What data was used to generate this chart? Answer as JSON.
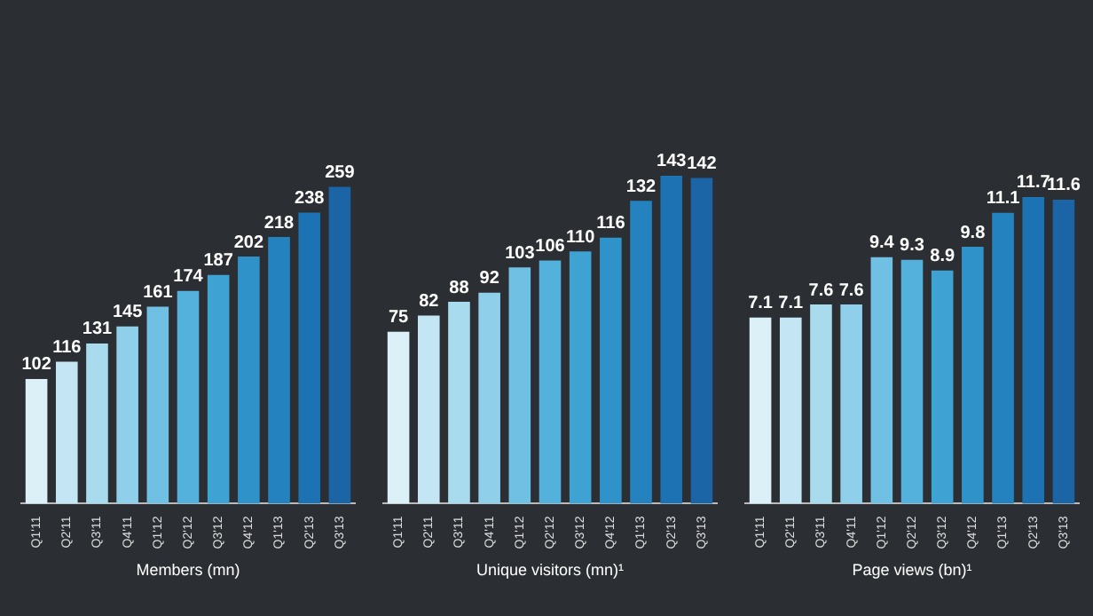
{
  "chart_data": [
    {
      "type": "bar",
      "xlabel": "Members (mn)",
      "categories": [
        "Q1'11",
        "Q2'11",
        "Q3'11",
        "Q4'11",
        "Q1'12",
        "Q2'12",
        "Q3'12",
        "Q4'12",
        "Q1'13",
        "Q2'13",
        "Q3'13"
      ],
      "values": [
        102,
        116,
        131,
        145,
        161,
        174,
        187,
        202,
        218,
        238,
        259
      ],
      "colors": [
        "#dcf0f8",
        "#c4e6f4",
        "#a9dbef",
        "#8fcfea",
        "#6fc0e3",
        "#53b1db",
        "#3ea2d3",
        "#2f92c9",
        "#2482bf",
        "#1c72b3",
        "#1b64a6"
      ],
      "data_labels": true,
      "legend": false,
      "grid": false
    },
    {
      "type": "bar",
      "xlabel": "Unique visitors (mn)¹",
      "categories": [
        "Q1'11",
        "Q2'11",
        "Q3'11",
        "Q4'11",
        "Q1'12",
        "Q2'12",
        "Q3'12",
        "Q4'12",
        "Q1'13",
        "Q2'13",
        "Q3'13"
      ],
      "values": [
        75,
        82,
        88,
        92,
        103,
        106,
        110,
        116,
        132,
        143,
        142
      ],
      "colors": [
        "#dcf0f8",
        "#c4e6f4",
        "#a9dbef",
        "#8fcfea",
        "#6fc0e3",
        "#53b1db",
        "#3ea2d3",
        "#2f92c9",
        "#2482bf",
        "#1c72b3",
        "#1b64a6"
      ],
      "data_labels": true,
      "legend": false,
      "grid": false
    },
    {
      "type": "bar",
      "xlabel": "Page views (bn)¹",
      "categories": [
        "Q1'11",
        "Q2'11",
        "Q3'11",
        "Q4'11",
        "Q1'12",
        "Q2'12",
        "Q3'12",
        "Q4'12",
        "Q1'13",
        "Q2'13",
        "Q3'13"
      ],
      "values": [
        7.1,
        7.1,
        7.6,
        7.6,
        9.4,
        9.3,
        8.9,
        9.8,
        11.1,
        11.7,
        11.6
      ],
      "colors": [
        "#dcf0f8",
        "#c4e6f4",
        "#a9dbef",
        "#8fcfea",
        "#6fc0e3",
        "#53b1db",
        "#3ea2d3",
        "#2f92c9",
        "#2482bf",
        "#1c72b3",
        "#1b64a6"
      ],
      "data_labels": true,
      "legend": false,
      "grid": false
    }
  ]
}
